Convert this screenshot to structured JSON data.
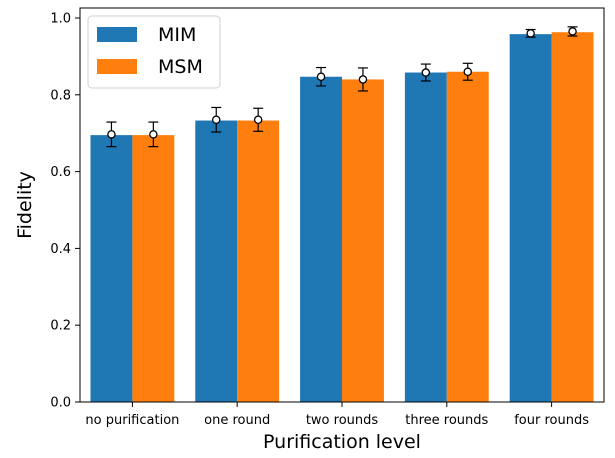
{
  "chart_data": {
    "type": "bar",
    "xlabel": "Purification level",
    "ylabel": "Fidelity",
    "ylim": [
      0,
      1.0
    ],
    "y_ticks": [
      "0.0",
      "0.2",
      "0.4",
      "0.6",
      "0.8",
      "1.0"
    ],
    "categories": [
      "no purification",
      "one round",
      "two rounds",
      "three rounds",
      "four rounds"
    ],
    "legend_position": "top-left",
    "series": [
      {
        "name": "MIM",
        "color": "#1f77b4",
        "values": [
          0.695,
          0.733,
          0.847,
          0.858,
          0.958
        ],
        "markers": [
          0.697,
          0.735,
          0.847,
          0.858,
          0.96
        ],
        "errors": [
          0.032,
          0.032,
          0.024,
          0.022,
          0.01
        ]
      },
      {
        "name": "MSM",
        "color": "#ff7f0e",
        "values": [
          0.695,
          0.733,
          0.84,
          0.86,
          0.963
        ],
        "markers": [
          0.697,
          0.735,
          0.84,
          0.86,
          0.965
        ],
        "errors": [
          0.032,
          0.03,
          0.03,
          0.022,
          0.012
        ]
      }
    ]
  }
}
